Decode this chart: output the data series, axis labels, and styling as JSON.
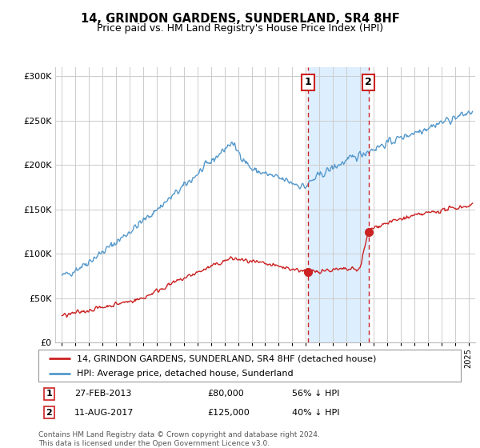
{
  "title": "14, GRINDON GARDENS, SUNDERLAND, SR4 8HF",
  "subtitle": "Price paid vs. HM Land Registry's House Price Index (HPI)",
  "title_fontsize": 10.5,
  "subtitle_fontsize": 9,
  "ylabel_ticks": [
    "£0",
    "£50K",
    "£100K",
    "£150K",
    "£200K",
    "£250K",
    "£300K"
  ],
  "ytick_values": [
    0,
    50000,
    100000,
    150000,
    200000,
    250000,
    300000
  ],
  "ylim": [
    0,
    310000
  ],
  "xlim_start": 1994.5,
  "xlim_end": 2025.5,
  "transaction1_date": 2013.15,
  "transaction1_price": 80000,
  "transaction2_date": 2017.62,
  "transaction2_price": 125000,
  "legend_line1": "14, GRINDON GARDENS, SUNDERLAND, SR4 8HF (detached house)",
  "legend_line2": "HPI: Average price, detached house, Sunderland",
  "row1_label": "1",
  "row1_date": "27-FEB-2013",
  "row1_price": "£80,000",
  "row1_hpi": "56% ↓ HPI",
  "row2_label": "2",
  "row2_date": "11-AUG-2017",
  "row2_price": "£125,000",
  "row2_hpi": "40% ↓ HPI",
  "footnote": "Contains HM Land Registry data © Crown copyright and database right 2024.\nThis data is licensed under the Open Government Licence v3.0.",
  "red_color": "#cc2222",
  "blue_color": "#5599cc",
  "highlight_color": "#ddeeff",
  "box_edge_color": "#cc2222",
  "background_color": "#ffffff",
  "grid_color": "#cccccc"
}
